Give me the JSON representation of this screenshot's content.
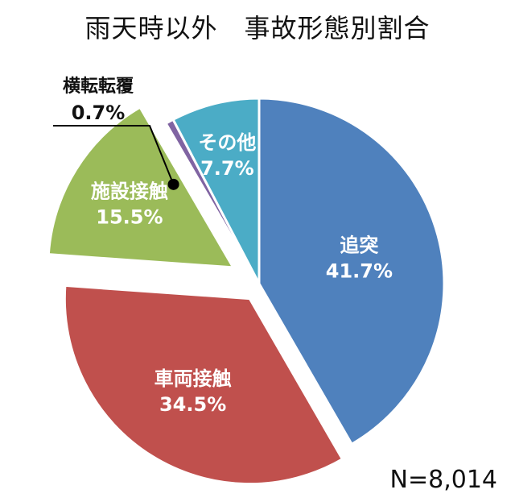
{
  "title": "雨天時以外　事故形態別割合",
  "n_label": "N=8,014",
  "chart_data": {
    "type": "pie",
    "title": "雨天時以外　事故形態別割合",
    "total": 8014,
    "slices": [
      {
        "label": "追突",
        "value": 41.7,
        "value_label": "41.7%",
        "color": "#4f81bd",
        "exploded": false
      },
      {
        "label": "車両接触",
        "value": 34.5,
        "value_label": "34.5%",
        "color": "#c0504d",
        "exploded": true
      },
      {
        "label": "施設接触",
        "value": 15.5,
        "value_label": "15.5%",
        "color": "#9bbb59",
        "exploded": true
      },
      {
        "label": "横転転覆",
        "value": 0.7,
        "value_label": "0.7%",
        "color": "#8064a2",
        "exploded": false
      },
      {
        "label": "その他",
        "value": 7.7,
        "value_label": "7.7%",
        "color": "#4bacc6",
        "exploded": false
      }
    ],
    "start_angle": "12 o'clock",
    "direction": "clockwise",
    "legend": "none"
  }
}
